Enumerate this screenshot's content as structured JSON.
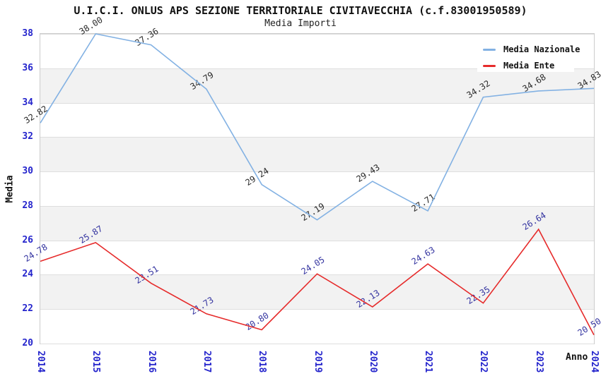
{
  "chart_data": {
    "type": "line",
    "title": "U.I.C.I. ONLUS APS SEZIONE TERRITORIALE CIVITAVECCHIA (c.f.83001950589)",
    "subtitle": "Media Importi",
    "xlabel": "Anno",
    "ylabel": "Media",
    "ylim": [
      20,
      38
    ],
    "yticks": [
      38,
      36,
      34,
      32,
      30,
      28,
      26,
      24,
      22,
      20
    ],
    "categories": [
      "2014",
      "2015",
      "2016",
      "2017",
      "2018",
      "2019",
      "2020",
      "2021",
      "2022",
      "2023",
      "2024"
    ],
    "series": [
      {
        "name": "Media Nazionale",
        "color": "#82b1e3",
        "label_color": "#2a2a2a",
        "values": [
          32.82,
          38.0,
          37.36,
          34.79,
          29.24,
          27.19,
          29.43,
          27.71,
          34.32,
          34.68,
          34.83
        ]
      },
      {
        "name": "Media Ente",
        "color": "#e62b2b",
        "label_color": "#3434a0",
        "values": [
          24.78,
          25.87,
          23.51,
          21.73,
          20.8,
          24.05,
          22.13,
          24.63,
          22.35,
          26.64,
          20.5
        ]
      }
    ],
    "legend_position": "top-right",
    "grid": "horizontal-bands",
    "colors": {
      "tick_label": "#2424cc",
      "band": "#f2f2f2",
      "gridline": "#dedede",
      "plot_border": "#cccccc",
      "background": "#ffffff"
    }
  }
}
